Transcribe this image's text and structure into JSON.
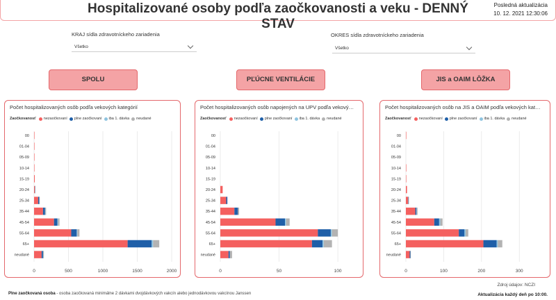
{
  "header": {
    "title": "Hospitalizované osoby podľa zaočkovanosti a veku - DENNÝ STAV",
    "update_label": "Posledná aktualizácia",
    "update_value": "10. 12. 2021 12:30:06"
  },
  "filters": {
    "kraj": {
      "label": "KRAJ sídla zdravotníckeho zariadenia",
      "value": "Všetko"
    },
    "okres": {
      "label": "OKRES sídla zdravotníckeho zariadenia",
      "value": "Všetko"
    }
  },
  "sections": [
    "SPOLU",
    "PĽÚCNE VENTILÁCIE",
    "JIS a OAIM LÔŽKA"
  ],
  "legend": {
    "title": "Zaočkovanosť",
    "items": [
      {
        "label": "nezaočkovaní",
        "color": "#f4605f"
      },
      {
        "label": "plne zaočkovaní",
        "color": "#1f5fa8"
      },
      {
        "label": "iba 1. dávka",
        "color": "#8fc4e0"
      },
      {
        "label": "neudané",
        "color": "#b3b3b3"
      }
    ]
  },
  "chart_data": [
    {
      "type": "bar",
      "orientation": "horizontal",
      "stacked": true,
      "title": "Počet hospitalizovaných osôb podľa vekových kategórií",
      "categories": [
        "00",
        "01-04",
        "05-09",
        "10-14",
        "15-19",
        "20-24",
        "25-34",
        "35-44",
        "45-54",
        "55-64",
        "65+",
        "neudané"
      ],
      "series": [
        {
          "name": "nezaočkovaní",
          "values": [
            5,
            5,
            3,
            5,
            10,
            10,
            60,
            130,
            290,
            540,
            1360,
            110
          ]
        },
        {
          "name": "plne zaočkovaní",
          "values": [
            0,
            0,
            0,
            0,
            0,
            2,
            15,
            30,
            50,
            80,
            350,
            20
          ]
        },
        {
          "name": "iba 1. dávka",
          "values": [
            0,
            0,
            0,
            0,
            0,
            0,
            2,
            5,
            10,
            10,
            20,
            3
          ]
        },
        {
          "name": "neudané",
          "values": [
            0,
            0,
            0,
            0,
            0,
            1,
            5,
            10,
            20,
            30,
            90,
            10
          ]
        }
      ],
      "xticks": [
        0,
        500,
        1000,
        1500,
        2000
      ],
      "xlim": [
        0,
        2000
      ]
    },
    {
      "type": "bar",
      "orientation": "horizontal",
      "stacked": true,
      "title": "Počet hospitalizovaných osôb napojených na UPV podľa vekových kategórií",
      "categories": [
        "00",
        "01-04",
        "05-09",
        "10-14",
        "15-19",
        "20-24",
        "25-34",
        "35-44",
        "45-54",
        "55-64",
        "65+",
        "neudané"
      ],
      "series": [
        {
          "name": "nezaočkovaní",
          "values": [
            0,
            0,
            0,
            0,
            0,
            2,
            5,
            12,
            47,
            83,
            78,
            7
          ]
        },
        {
          "name": "plne zaočkovaní",
          "values": [
            0,
            0,
            0,
            0,
            0,
            0,
            1,
            3,
            8,
            11,
            9,
            1
          ]
        },
        {
          "name": "iba 1. dávka",
          "values": [
            0,
            0,
            0,
            0,
            0,
            0,
            0,
            0,
            1,
            1,
            1,
            0
          ]
        },
        {
          "name": "neudané",
          "values": [
            0,
            0,
            0,
            0,
            0,
            0,
            0,
            1,
            3,
            5,
            7,
            2
          ]
        }
      ],
      "xticks": [
        0,
        50,
        100
      ],
      "xlim": [
        0,
        110
      ]
    },
    {
      "type": "bar",
      "orientation": "horizontal",
      "stacked": true,
      "title": "Počet hospitalizovaných osôb na JIS a OAIM podľa vekových kategórií",
      "categories": [
        "00",
        "01-04",
        "05-09",
        "10-14",
        "15-19",
        "20-24",
        "25-34",
        "35-44",
        "45-54",
        "55-64",
        "65+",
        "neudané"
      ],
      "series": [
        {
          "name": "nezaočkovaní",
          "values": [
            1,
            0,
            0,
            1,
            1,
            3,
            6,
            25,
            75,
            140,
            205,
            10
          ]
        },
        {
          "name": "plne zaočkovaní",
          "values": [
            0,
            0,
            0,
            0,
            0,
            0,
            1,
            3,
            13,
            15,
            35,
            2
          ]
        },
        {
          "name": "iba 1. dávka",
          "values": [
            0,
            0,
            0,
            0,
            0,
            0,
            0,
            1,
            3,
            3,
            3,
            0
          ]
        },
        {
          "name": "neudané",
          "values": [
            0,
            0,
            0,
            0,
            0,
            0,
            1,
            2,
            6,
            7,
            12,
            1
          ]
        }
      ],
      "xticks": [
        0,
        100,
        200,
        300
      ],
      "xlim": [
        0,
        340
      ]
    }
  ],
  "footer": {
    "note_bold": "Plne zaočkovaná osoba",
    "note_text": " - osoba zaočkovaná minimálne 2 dávkami dvojdávkových vakcín alebo jednodávkovou vakcínou Janssen",
    "source": "Zdroj údajov: NCZI",
    "daily": "Aktualizácia každý deň po 10:00."
  }
}
